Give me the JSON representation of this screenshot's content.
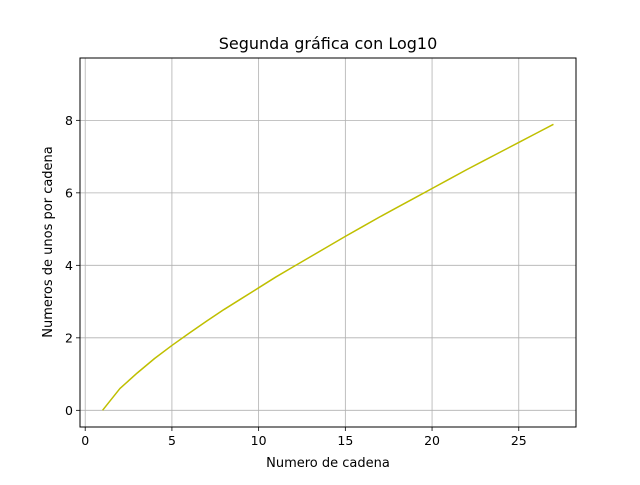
{
  "chart_data": {
    "type": "line",
    "title": "Segunda gráfica con Log10",
    "xlabel": "Numero de cadena",
    "ylabel": "Numeros de unos por cadena",
    "xlim": [
      -0.3,
      28.3
    ],
    "ylim": [
      -0.46,
      9.72
    ],
    "x_ticks": [
      0,
      5,
      10,
      15,
      20,
      25
    ],
    "y_ticks": [
      0,
      2,
      4,
      6,
      8
    ],
    "grid": true,
    "line_color": "#bfbf00",
    "series": [
      {
        "x": [
          1,
          2,
          3,
          4,
          5,
          6,
          7,
          8,
          9,
          10,
          11,
          12,
          13,
          14,
          15,
          16,
          17,
          18,
          19,
          20,
          21,
          22,
          23,
          24,
          25,
          26,
          27
        ],
        "values": [
          0.0,
          0.6,
          1.03,
          1.43,
          1.79,
          2.13,
          2.46,
          2.78,
          3.08,
          3.38,
          3.68,
          3.96,
          4.24,
          4.52,
          4.8,
          5.07,
          5.34,
          5.6,
          5.86,
          6.12,
          6.38,
          6.64,
          6.89,
          7.14,
          7.39,
          7.64,
          7.89
        ]
      }
    ]
  }
}
